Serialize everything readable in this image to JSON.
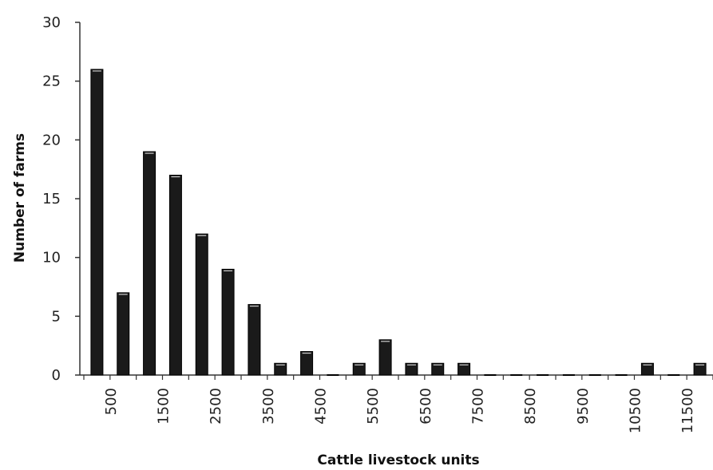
{
  "chart_data": {
    "type": "bar",
    "title": "",
    "xlabel": "Cattle livestock units",
    "ylabel": "Number of farms",
    "ylim": [
      0,
      30
    ],
    "yticks": [
      0,
      5,
      10,
      15,
      20,
      25,
      30
    ],
    "xtick_labels": [
      "500",
      "1500",
      "2500",
      "3500",
      "4500",
      "5500",
      "6500",
      "7500",
      "8500",
      "9500",
      "10500",
      "11500"
    ],
    "categories": [
      250,
      750,
      1250,
      1750,
      2250,
      2750,
      3250,
      3750,
      4250,
      4750,
      5250,
      5750,
      6250,
      6750,
      7250,
      7750,
      8250,
      8750,
      9250,
      9750,
      10250,
      10750,
      11250,
      11750
    ],
    "values": [
      26,
      7,
      19,
      17,
      12,
      9,
      6,
      1,
      2,
      0,
      1,
      3,
      1,
      1,
      1,
      0,
      0,
      0,
      0,
      0,
      0,
      1,
      0,
      1
    ],
    "bar_color": "#1a1a1a",
    "grid": false
  }
}
